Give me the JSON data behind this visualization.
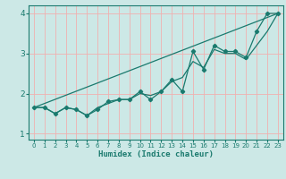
{
  "xlabel": "Humidex (Indice chaleur)",
  "background_color": "#cce8e6",
  "grid_color": "#f0b0b0",
  "line_color": "#1a7a6e",
  "xlim": [
    -0.5,
    23.5
  ],
  "ylim": [
    0.85,
    4.2
  ],
  "yticks": [
    1,
    2,
    3,
    4
  ],
  "xticks": [
    0,
    1,
    2,
    3,
    4,
    5,
    6,
    7,
    8,
    9,
    10,
    11,
    12,
    13,
    14,
    15,
    16,
    17,
    18,
    19,
    20,
    21,
    22,
    23
  ],
  "line_straight": {
    "x": [
      0,
      23
    ],
    "y": [
      1.65,
      4.0
    ]
  },
  "line_zigzag": {
    "x": [
      0,
      1,
      2,
      3,
      4,
      5,
      6,
      7,
      8,
      9,
      10,
      11,
      12,
      13,
      14,
      15,
      16,
      17,
      18,
      19,
      20,
      21,
      22,
      23
    ],
    "y": [
      1.65,
      1.65,
      1.5,
      1.65,
      1.6,
      1.45,
      1.6,
      1.8,
      1.85,
      1.85,
      2.05,
      1.85,
      2.05,
      2.35,
      2.05,
      3.05,
      2.6,
      3.2,
      3.05,
      3.05,
      2.9,
      3.55,
      4.0,
      4.0
    ]
  },
  "line_smooth": {
    "x": [
      0,
      1,
      2,
      3,
      4,
      5,
      6,
      7,
      8,
      9,
      10,
      11,
      12,
      13,
      14,
      15,
      16,
      17,
      18,
      19,
      20,
      21,
      22,
      23
    ],
    "y": [
      1.65,
      1.65,
      1.5,
      1.65,
      1.6,
      1.45,
      1.65,
      1.75,
      1.85,
      1.85,
      2.0,
      1.95,
      2.05,
      2.3,
      2.4,
      2.8,
      2.65,
      3.1,
      3.0,
      3.0,
      2.85,
      3.2,
      3.55,
      4.0
    ]
  }
}
